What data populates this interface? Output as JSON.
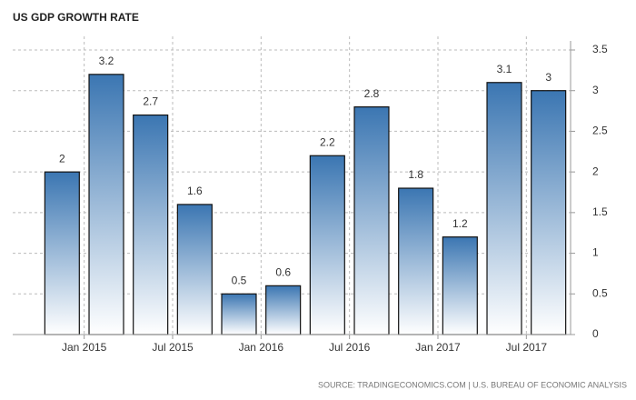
{
  "chart_data": {
    "type": "bar",
    "title": "US GDP GROWTH RATE",
    "source": "SOURCE: TRADINGECONOMICS.COM | U.S. BUREAU OF ECONOMIC ANALYSIS",
    "categories": [
      "Jan 2015",
      null,
      "Jul 2015",
      null,
      "Jan 2016",
      null,
      "Jul 2016",
      null,
      "Jan 2017",
      null,
      "Jul 2017",
      null
    ],
    "values": [
      2,
      3.2,
      2.7,
      1.6,
      0.5,
      0.6,
      2.2,
      2.8,
      1.8,
      1.2,
      3.1,
      3
    ],
    "color": "#3b76b2",
    "ylim": [
      0,
      3.5
    ],
    "yticks": [
      0,
      0.5,
      1,
      1.5,
      2,
      2.5,
      3,
      3.5
    ],
    "grid": true
  }
}
